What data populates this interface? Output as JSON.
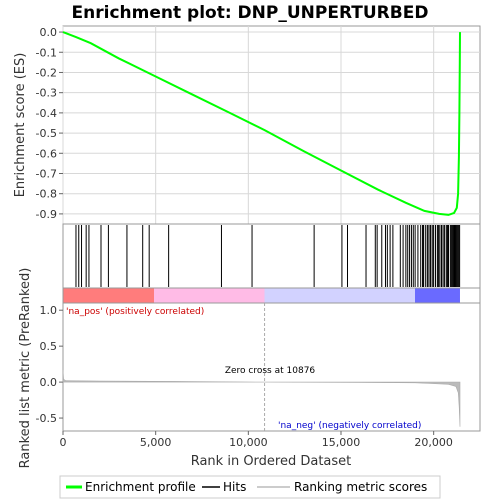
{
  "chart_data": {
    "type": "line",
    "title": "Enrichment plot: DNP_UNPERTURBED",
    "xlabel": "Rank in Ordered Dataset",
    "xlim": [
      0,
      22500
    ],
    "x_ticks": [
      0,
      5000,
      10000,
      15000,
      20000
    ],
    "x_tick_labels": [
      "0",
      "5,000",
      "10,000",
      "15,000",
      "20,000"
    ],
    "panels": {
      "enrichment": {
        "ylabel": "Enrichment score (ES)",
        "ylim": [
          -0.95,
          0.03
        ],
        "y_ticks": [
          0.0,
          -0.1,
          -0.2,
          -0.3,
          -0.4,
          -0.5,
          -0.6,
          -0.7,
          -0.8,
          -0.9
        ],
        "y_tick_labels": [
          "0.0",
          "-0.1",
          "-0.2",
          "-0.3",
          "-0.4",
          "-0.5",
          "-0.6",
          "-0.7",
          "-0.8",
          "-0.9"
        ],
        "grid": true,
        "series": [
          {
            "name": "Enrichment profile",
            "color": "#00ff00",
            "points": [
              [
                0,
                0.0
              ],
              [
                700,
                -0.025
              ],
              [
                1500,
                -0.055
              ],
              [
                3000,
                -0.13
              ],
              [
                5000,
                -0.22
              ],
              [
                7000,
                -0.31
              ],
              [
                9000,
                -0.4
              ],
              [
                10876,
                -0.485
              ],
              [
                13000,
                -0.59
              ],
              [
                15000,
                -0.685
              ],
              [
                17000,
                -0.78
              ],
              [
                18500,
                -0.845
              ],
              [
                19500,
                -0.885
              ],
              [
                20300,
                -0.9
              ],
              [
                20800,
                -0.905
              ],
              [
                21100,
                -0.895
              ],
              [
                21250,
                -0.87
              ],
              [
                21320,
                -0.8
              ],
              [
                21360,
                -0.62
              ],
              [
                21390,
                -0.4
              ],
              [
                21410,
                -0.15
              ],
              [
                21420,
                0.0
              ]
            ]
          }
        ]
      },
      "hits": {
        "name": "Hits",
        "color": "#000000",
        "positions": [
          700,
          850,
          1000,
          1250,
          1400,
          2050,
          2450,
          3450,
          4300,
          4650,
          5700,
          8550,
          10200,
          13550,
          15050,
          15350,
          16350,
          16850,
          16950,
          17200,
          17400,
          17500,
          17650,
          17800,
          18200,
          18350,
          18500,
          18600,
          18700,
          18800,
          18900,
          19000,
          19150,
          19300,
          19400,
          19450,
          19550,
          19650,
          19700,
          19800,
          19850,
          19950,
          20000,
          20100,
          20200,
          20250,
          20300,
          20400,
          20450,
          20550,
          20600,
          20700,
          20750,
          20800,
          20900,
          20950,
          21000,
          21050,
          21100,
          21150,
          21200,
          21250,
          21300,
          21350,
          21400
        ]
      },
      "ranking_bar": {
        "zones": [
          {
            "start": 0,
            "end": 4900,
            "color": "#ff7c7c"
          },
          {
            "start": 4900,
            "end": 10876,
            "color": "#ffbbe6"
          },
          {
            "start": 10876,
            "end": 19000,
            "color": "#d2d2ff"
          },
          {
            "start": 19000,
            "end": 21420,
            "color": "#6a6aff"
          }
        ]
      },
      "ranking_metric": {
        "ylabel": "Ranked list metric (PreRanked)",
        "name": "Ranking metric scores",
        "color": "#bbbbbb",
        "ylim": [
          -0.68,
          1.1
        ],
        "y_ticks": [
          1.0,
          0.5,
          0.0,
          -0.5
        ],
        "y_tick_labels": [
          "1.0",
          "0.5",
          "0.0",
          "-0.5"
        ],
        "points": [
          [
            0,
            0.17
          ],
          [
            30,
            0.04
          ],
          [
            150,
            0.02
          ],
          [
            2000,
            0.015
          ],
          [
            6000,
            0.01
          ],
          [
            10876,
            0.0
          ],
          [
            16000,
            -0.005
          ],
          [
            19000,
            -0.01
          ],
          [
            19800,
            -0.02
          ],
          [
            20800,
            -0.03
          ],
          [
            21200,
            -0.06
          ],
          [
            21330,
            -0.15
          ],
          [
            21380,
            -0.35
          ],
          [
            21420,
            -0.62
          ]
        ],
        "annotations": {
          "pos_label": "'na_pos' (positively correlated)",
          "pos_color": "#cc0000",
          "neg_label": "'na_neg' (negatively correlated)",
          "neg_color": "#0000cc",
          "zero_cross_label": "Zero cross at 10876",
          "zero_cross_x": 10876
        }
      }
    },
    "legend": {
      "placement": "bottom",
      "items": [
        {
          "label": "Enrichment profile",
          "color": "#00ff00",
          "kind": "line"
        },
        {
          "label": "Hits",
          "color": "#000000",
          "kind": "line"
        },
        {
          "label": "Ranking metric scores",
          "color": "#bbbbbb",
          "kind": "line"
        }
      ]
    }
  }
}
